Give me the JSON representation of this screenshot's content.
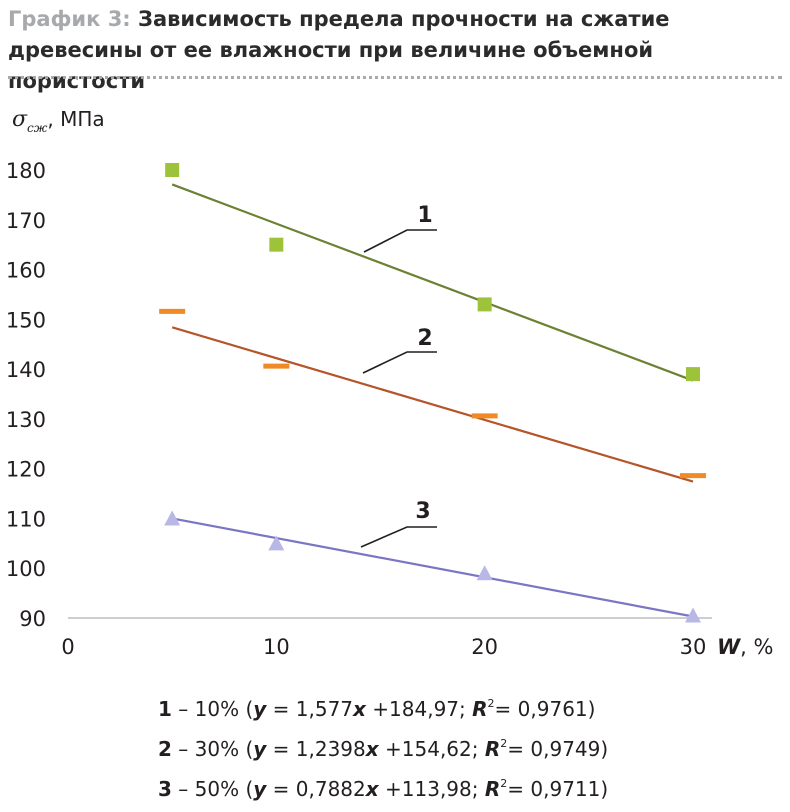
{
  "title": {
    "prefix": "График 3:",
    "line1": "Зависимость предела прочности на сжатие",
    "line2": "древесины от ее влажности при величине объемной пористости"
  },
  "colors": {
    "series1": "#6b8233",
    "series1_marker": "#9dc33b",
    "series2": "#b5552a",
    "series2_marker": "#f08a24",
    "series3": "#7a76c4",
    "series3_marker": "#b9b7e6",
    "axis": "#bcbec0"
  },
  "chart_data": {
    "type": "scatter",
    "ylabel_symbol": "σ",
    "ylabel_subscript": "сж",
    "ylabel_unit": ", МПа",
    "xlabel_symbol": "W",
    "xlabel_unit": ", %",
    "xlim": [
      0,
      30
    ],
    "ylim": [
      90,
      180
    ],
    "xticks": [
      "0",
      "10",
      "20",
      "30"
    ],
    "yticks": [
      "90",
      "100",
      "110",
      "120",
      "130",
      "140",
      "150",
      "160",
      "170",
      "180"
    ],
    "grid": false,
    "series": [
      {
        "name": "1",
        "marker": "square",
        "x": [
          5,
          10,
          20,
          30
        ],
        "y": [
          180,
          165,
          153,
          139
        ],
        "trend": {
          "x": [
            5,
            30
          ],
          "y": [
            177.1,
            137.7
          ]
        }
      },
      {
        "name": "2",
        "marker": "dash",
        "x": [
          5,
          10,
          20,
          30
        ],
        "y": [
          151.5,
          140.5,
          130.5,
          118.5
        ],
        "trend": {
          "x": [
            5,
            30
          ],
          "y": [
            148.4,
            117.4
          ]
        }
      },
      {
        "name": "3",
        "marker": "triangle",
        "x": [
          5,
          10,
          20,
          30
        ],
        "y": [
          110,
          105,
          99,
          90.5
        ],
        "trend": {
          "x": [
            5,
            30
          ],
          "y": [
            110.0,
            90.3
          ]
        }
      }
    ],
    "legend": [
      {
        "num": "1",
        "pct": " – 10% (",
        "y": "y",
        "eq": " = 1,577",
        "x": "x",
        "rest": " +184,97; ",
        "r": "R",
        "two": "2",
        "r2": "= 0,9761)"
      },
      {
        "num": "2",
        "pct": " – 30% (",
        "y": "y",
        "eq": " = 1,2398",
        "x": "x",
        "rest": " +154,62; ",
        "r": "R",
        "two": "2",
        "r2": "= 0,9749)"
      },
      {
        "num": "3",
        "pct": " – 50% (",
        "y": "y",
        "eq": " = 0,7882",
        "x": "x",
        "rest": " +113,98; ",
        "r": "R",
        "two": "2",
        "r2": "= 0,9711)"
      }
    ]
  }
}
